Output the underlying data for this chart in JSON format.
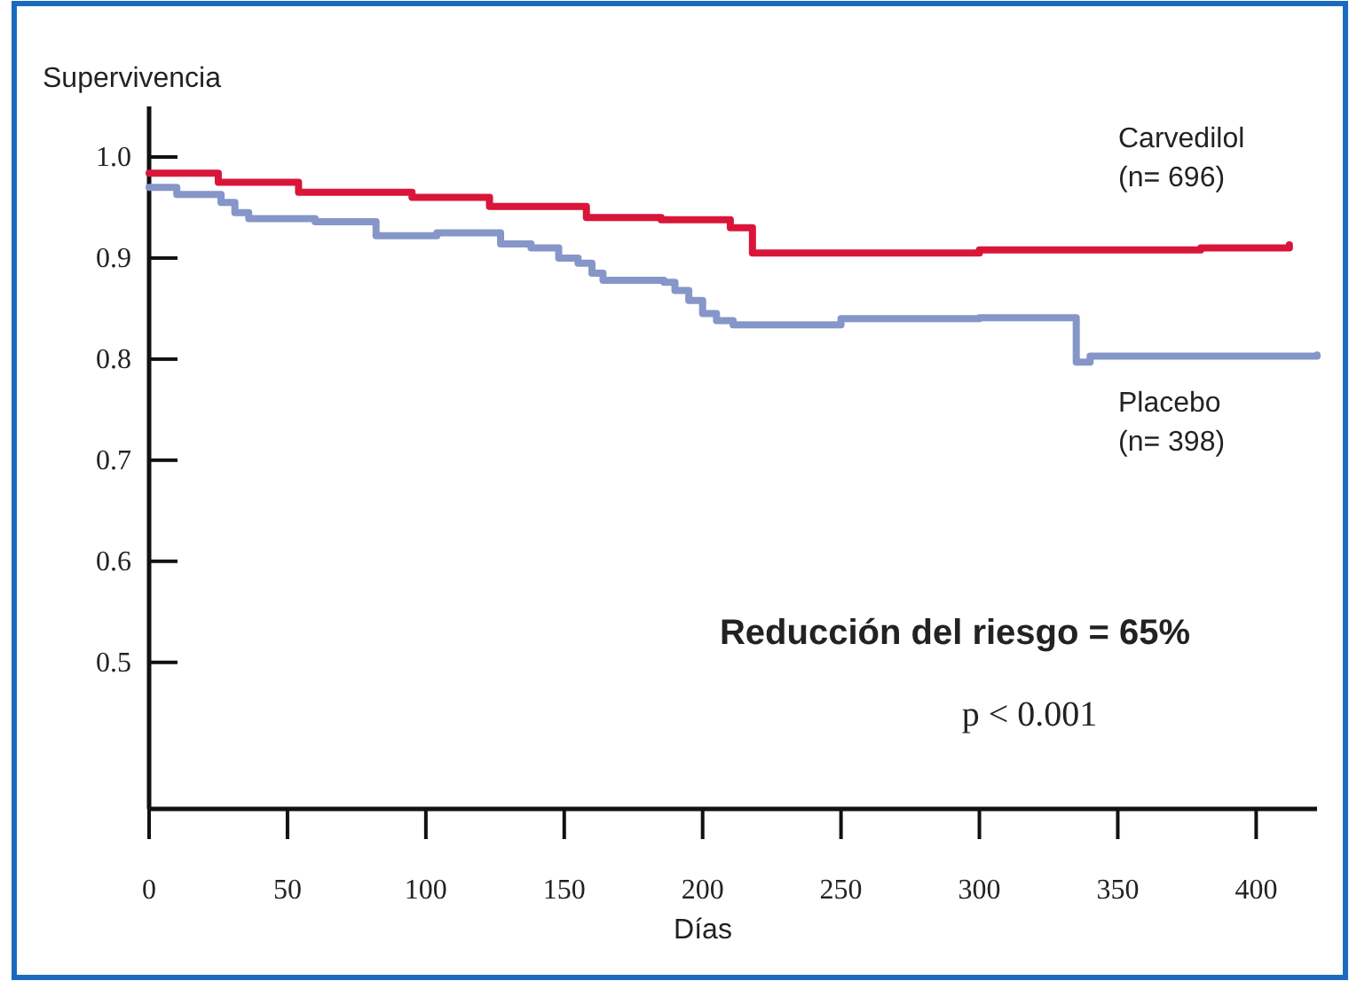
{
  "chart_data": {
    "type": "step",
    "xlabel": "Días",
    "ylabel": "Supervivencia",
    "xlim": [
      0,
      422
    ],
    "ylim": [
      0.355,
      1.05
    ],
    "xticks": [
      0,
      50,
      100,
      150,
      200,
      250,
      300,
      350,
      400
    ],
    "yticks": [
      0.5,
      0.6,
      0.7,
      0.8,
      0.9,
      {
        "value": 1,
        "label": "1.0"
      }
    ],
    "grid": false,
    "marker": "none",
    "line_style": "solid",
    "annotations": [
      "Reducción del riesgo = 65%",
      "p < 0.001"
    ],
    "series": [
      {
        "name": "Carvedilol\n(n= 696)",
        "color": "#d9163a",
        "x": [
          0,
          25,
          54,
          95,
          123,
          158,
          185,
          210,
          218,
          300,
          380,
          412
        ],
        "values": [
          0.984,
          0.975,
          0.965,
          0.96,
          0.951,
          0.94,
          0.938,
          0.93,
          0.905,
          0.908,
          0.91,
          0.913
        ]
      },
      {
        "name": "Placebo\n(n= 398)",
        "color": "#8696c8",
        "x": [
          0,
          10,
          26,
          31,
          36,
          60,
          82,
          104,
          127,
          138,
          148,
          155,
          160,
          164,
          186,
          190,
          195,
          200,
          205,
          211,
          250,
          300,
          335,
          340,
          422
        ],
        "values": [
          0.97,
          0.963,
          0.955,
          0.945,
          0.939,
          0.936,
          0.922,
          0.925,
          0.914,
          0.91,
          0.9,
          0.895,
          0.885,
          0.878,
          0.876,
          0.868,
          0.858,
          0.845,
          0.838,
          0.834,
          0.84,
          0.841,
          0.797,
          0.803,
          0.804
        ]
      }
    ]
  }
}
